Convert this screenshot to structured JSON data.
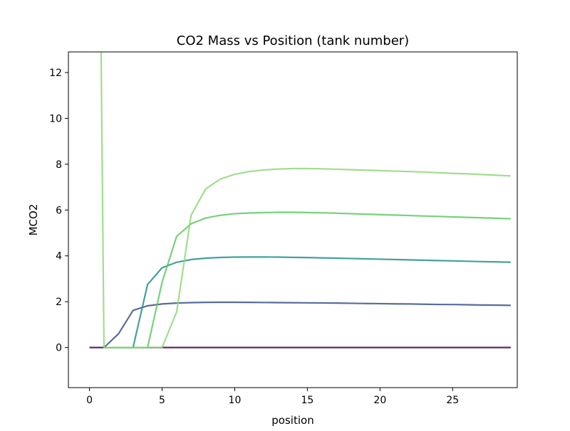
{
  "chart_data": {
    "type": "line",
    "title": "CO2 Mass vs Position (tank number)",
    "xlabel": "position",
    "ylabel": "MCO2",
    "xlim": [
      -1.45,
      29.45
    ],
    "ylim": [
      -1.75,
      12.9
    ],
    "xticks": [
      0,
      5,
      10,
      15,
      20,
      25
    ],
    "yticks": [
      0,
      2,
      4,
      6,
      8,
      10,
      12
    ],
    "grid": false,
    "legend": "none",
    "series": [
      {
        "color": "#440154",
        "x": [
          0,
          1,
          2,
          3,
          4,
          5,
          6,
          7,
          8,
          9,
          10,
          11,
          12,
          13,
          14,
          15,
          16,
          17,
          18,
          19,
          20,
          21,
          22,
          23,
          24,
          25,
          26,
          27,
          28,
          29
        ],
        "y": [
          0,
          0,
          0,
          0,
          0,
          0,
          0,
          0,
          0,
          0,
          0,
          0,
          0,
          0,
          0,
          0,
          0,
          0,
          0,
          0,
          0,
          0,
          0,
          0,
          0,
          0,
          0,
          0,
          0,
          0
        ]
      },
      {
        "color": "#3b528b",
        "x": [
          1,
          2,
          3,
          4,
          5,
          6,
          7,
          8,
          9,
          10,
          11,
          12,
          13,
          14,
          15,
          16,
          17,
          18,
          19,
          20,
          21,
          22,
          23,
          24,
          25,
          26,
          27,
          28,
          29
        ],
        "y": [
          0,
          0.6,
          1.62,
          1.82,
          1.9,
          1.94,
          1.96,
          1.97,
          1.975,
          1.975,
          1.97,
          1.965,
          1.96,
          1.955,
          1.95,
          1.945,
          1.94,
          1.93,
          1.92,
          1.915,
          1.905,
          1.9,
          1.89,
          1.88,
          1.875,
          1.865,
          1.855,
          1.85,
          1.84
        ]
      },
      {
        "color": "#21918c",
        "x": [
          1,
          2,
          3,
          4,
          5,
          6,
          7,
          8,
          9,
          10,
          11,
          12,
          13,
          14,
          15,
          16,
          17,
          18,
          19,
          20,
          21,
          22,
          23,
          24,
          25,
          26,
          27,
          28,
          29
        ],
        "y": [
          0,
          0,
          0,
          2.75,
          3.48,
          3.72,
          3.84,
          3.9,
          3.93,
          3.945,
          3.95,
          3.95,
          3.945,
          3.935,
          3.925,
          3.91,
          3.9,
          3.885,
          3.87,
          3.855,
          3.84,
          3.825,
          3.81,
          3.795,
          3.78,
          3.765,
          3.75,
          3.735,
          3.72
        ]
      },
      {
        "color": "#5ec962",
        "x": [
          1,
          2,
          3,
          4,
          5,
          6,
          7,
          8,
          9,
          10,
          11,
          12,
          13,
          14,
          15,
          16,
          17,
          18,
          19,
          20,
          21,
          22,
          23,
          24,
          25,
          26,
          27,
          28,
          29
        ],
        "y": [
          0,
          0,
          0,
          0,
          2.85,
          4.85,
          5.4,
          5.65,
          5.77,
          5.84,
          5.87,
          5.89,
          5.9,
          5.9,
          5.89,
          5.88,
          5.86,
          5.84,
          5.82,
          5.8,
          5.78,
          5.76,
          5.74,
          5.72,
          5.7,
          5.68,
          5.66,
          5.64,
          5.62
        ]
      },
      {
        "color": "#90d77a",
        "x": [
          0.8,
          1,
          2,
          3,
          4,
          5,
          6,
          7,
          8,
          9,
          10,
          11,
          12,
          13,
          14,
          15,
          16,
          17,
          18,
          19,
          20,
          21,
          22,
          23,
          24,
          25,
          26,
          27,
          28,
          29
        ],
        "y": [
          12.9,
          0,
          0,
          0,
          0,
          0,
          1.55,
          5.78,
          6.92,
          7.35,
          7.56,
          7.68,
          7.75,
          7.79,
          7.81,
          7.81,
          7.8,
          7.78,
          7.76,
          7.74,
          7.72,
          7.7,
          7.68,
          7.66,
          7.63,
          7.6,
          7.58,
          7.55,
          7.52,
          7.49
        ]
      }
    ]
  }
}
